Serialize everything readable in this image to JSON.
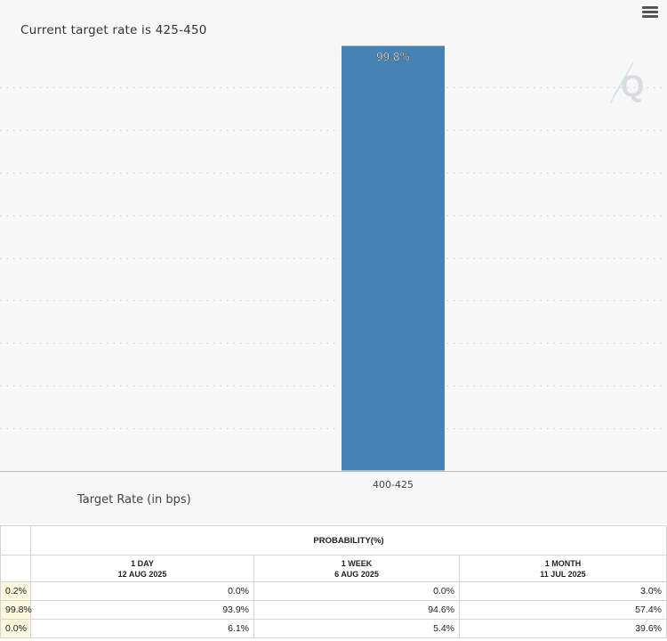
{
  "chart_data": {
    "type": "bar",
    "title": "Current target rate is 425-450",
    "categories": [
      "400-425"
    ],
    "values": [
      99.8
    ],
    "data_labels": [
      "99.8%"
    ],
    "xlabel": "Target Rate (in bps)",
    "ylabel": "",
    "ylim": [
      0,
      100
    ],
    "grid": true,
    "bar_color": "#4682b4",
    "colors": {
      "background": "#f7f7f7",
      "grid": "#d0d0d0"
    }
  },
  "table": {
    "header": "PROBABILITY(%)",
    "columns": [
      {
        "period": "1 DAY",
        "date": "12 AUG 2025"
      },
      {
        "period": "1 WEEK",
        "date": "6 AUG 2025"
      },
      {
        "period": "1 MONTH",
        "date": "11 JUL 2025"
      }
    ],
    "rows": [
      {
        "current": "0.2%",
        "values": [
          "0.0%",
          "0.0%",
          "3.0%"
        ]
      },
      {
        "current": "99.8%",
        "values": [
          "93.9%",
          "94.6%",
          "57.4%"
        ]
      },
      {
        "current": "0.0%",
        "values": [
          "6.1%",
          "5.4%",
          "39.6%"
        ]
      }
    ]
  },
  "toolbar": {
    "menu_icon": "hamburger-menu-icon"
  }
}
